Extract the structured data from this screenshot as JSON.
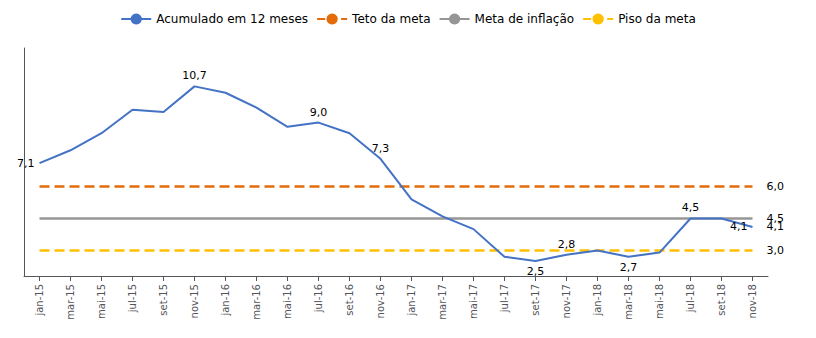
{
  "chart_data": {
    "type": "line",
    "categories": [
      "jan-15",
      "mar-15",
      "mai-15",
      "jul-15",
      "set-15",
      "nov-15",
      "jan-16",
      "mar-16",
      "mai-16",
      "jul-16",
      "set-16",
      "nov-16",
      "jan-17",
      "mar-17",
      "mai-17",
      "jul-17",
      "set-17",
      "nov-17",
      "jan-18",
      "mar-18",
      "mai-18",
      "jul-18",
      "set-18",
      "nov-18"
    ],
    "series": [
      {
        "name": "Acumulado em 12 meses",
        "color": "#4472C4",
        "line_style": "solid",
        "values": [
          7.1,
          7.7,
          8.5,
          9.6,
          9.5,
          10.7,
          10.4,
          9.7,
          8.8,
          9.0,
          8.5,
          7.3,
          5.4,
          4.6,
          4.0,
          2.7,
          2.5,
          2.8,
          3.0,
          2.7,
          2.9,
          4.5,
          4.5,
          4.1
        ],
        "value_labels": [
          "7,1",
          null,
          null,
          null,
          null,
          "10,7",
          null,
          null,
          null,
          "9,0",
          null,
          "7,3",
          null,
          null,
          null,
          null,
          "2,5",
          "2,8",
          null,
          "2,7",
          null,
          "4,5",
          null,
          "4,1"
        ]
      },
      {
        "name": "Teto da meta",
        "color": "#E36C09",
        "line_style": "dashed",
        "values": [
          6.0,
          6.0,
          6.0,
          6.0,
          6.0,
          6.0,
          6.0,
          6.0,
          6.0,
          6.0,
          6.0,
          6.0,
          6.0,
          6.0,
          6.0,
          6.0,
          6.0,
          6.0,
          6.0,
          6.0,
          6.0,
          6.0,
          6.0,
          6.0
        ]
      },
      {
        "name": "Meta de inflação",
        "color": "#969696",
        "line_style": "solid",
        "values": [
          4.5,
          4.5,
          4.5,
          4.5,
          4.5,
          4.5,
          4.5,
          4.5,
          4.5,
          4.5,
          4.5,
          4.5,
          4.5,
          4.5,
          4.5,
          4.5,
          4.5,
          4.5,
          4.5,
          4.5,
          4.5,
          4.5,
          4.5,
          4.5
        ]
      },
      {
        "name": "Piso da meta",
        "color": "#FFC000",
        "line_style": "dashed",
        "values": [
          3.0,
          3.0,
          3.0,
          3.0,
          3.0,
          3.0,
          3.0,
          3.0,
          3.0,
          3.0,
          3.0,
          3.0,
          3.0,
          3.0,
          3.0,
          3.0,
          3.0,
          3.0,
          3.0,
          3.0,
          3.0,
          3.0,
          3.0,
          3.0
        ]
      }
    ],
    "annotations": [
      {
        "y": 6.0,
        "label": "6,0"
      },
      {
        "y": 4.5,
        "label": "4,5"
      },
      {
        "y": 4.1,
        "label": "4,1"
      },
      {
        "y": 3.0,
        "label": "3,0"
      }
    ],
    "ylim": [
      1.8,
      12.5
    ],
    "tick_labels": "x",
    "grid": false,
    "legend": "top"
  }
}
